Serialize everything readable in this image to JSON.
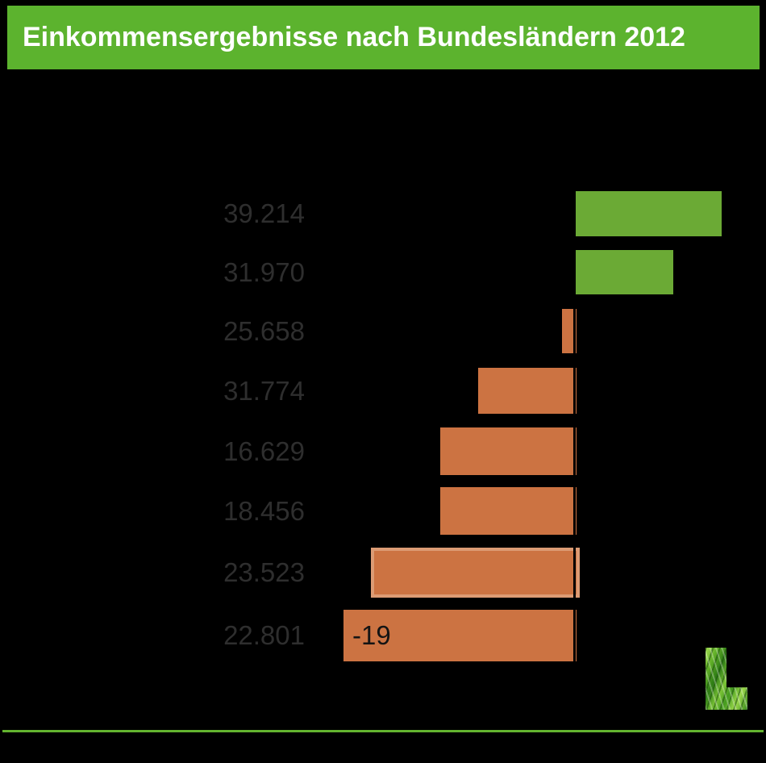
{
  "header": {
    "title": "Einkommensergebnisse nach Bundesländern 2012",
    "bg_color": "#5CB32E",
    "text_color": "#FFFFFF"
  },
  "chart_data": {
    "type": "bar",
    "orientation": "horizontal",
    "title": "Einkommensergebnisse nach Bundesländern 2012",
    "note": "diverging bar chart around a zero axis; category names and axis text are not legible (black on black); percent values estimated from bar lengths, only the -19 data label is visible",
    "zero_axis": true,
    "bars": [
      {
        "value_label": "39.214",
        "pct_est": 12.0,
        "color_key": "positive",
        "highlighted": false,
        "bar_label": ""
      },
      {
        "value_label": "31.970",
        "pct_est": 8.1,
        "color_key": "positive",
        "highlighted": false,
        "bar_label": ""
      },
      {
        "value_label": "25.658",
        "pct_est": -1.2,
        "color_key": "negative",
        "highlighted": false,
        "bar_label": ""
      },
      {
        "value_label": "31.774",
        "pct_est": -8.0,
        "color_key": "negative",
        "highlighted": false,
        "bar_label": ""
      },
      {
        "value_label": "16.629",
        "pct_est": -11.1,
        "color_key": "negative",
        "highlighted": false,
        "bar_label": ""
      },
      {
        "value_label": "18.456",
        "pct_est": -11.1,
        "color_key": "negative",
        "highlighted": false,
        "bar_label": ""
      },
      {
        "value_label": "23.523",
        "pct_est": -16.5,
        "color_key": "negative",
        "highlighted": true,
        "bar_label": ""
      },
      {
        "value_label": "22.801",
        "pct_est": -19.0,
        "color_key": "negative",
        "highlighted": false,
        "bar_label": "-19"
      }
    ],
    "visible_data_labels": [
      "-19"
    ],
    "colors": {
      "positive_bar": "#6BAA35",
      "negative_bar": "#CC7342",
      "highlight_border": "#DC9B74",
      "value_label_text": "#2e2e2e",
      "data_label_text": "#141414",
      "background": "#000000"
    }
  },
  "footer": {
    "divider_color": "#63B32F",
    "logo": "grass-l-logo"
  }
}
